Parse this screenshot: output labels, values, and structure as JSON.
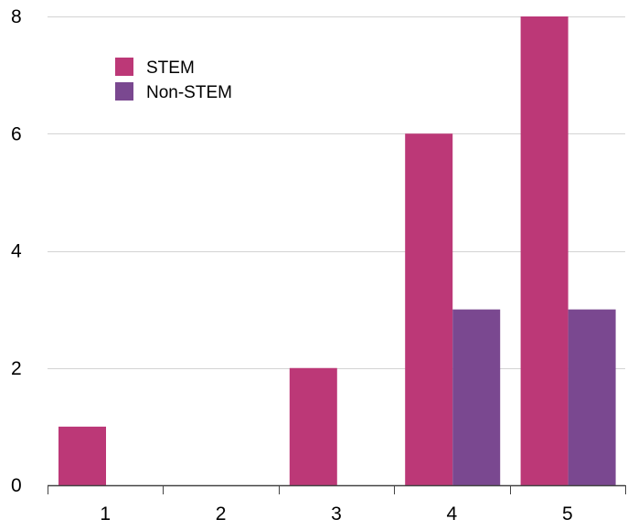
{
  "chart_data": {
    "type": "bar",
    "categories": [
      "1",
      "2",
      "3",
      "4",
      "5"
    ],
    "series": [
      {
        "name": "STEM",
        "values": [
          1,
          0,
          2,
          6,
          8
        ],
        "color": "#bc3877"
      },
      {
        "name": "Non-STEM",
        "values": [
          0,
          0,
          0,
          3,
          3
        ],
        "color": "#7a4890"
      }
    ],
    "ylim": [
      0,
      8
    ],
    "yticks": [
      "0",
      "2",
      "4",
      "6",
      "8"
    ],
    "ytick_values": [
      0,
      2,
      4,
      6,
      8
    ],
    "grid": true,
    "legend_position": "top-left",
    "title": "",
    "xlabel": "",
    "ylabel": ""
  }
}
